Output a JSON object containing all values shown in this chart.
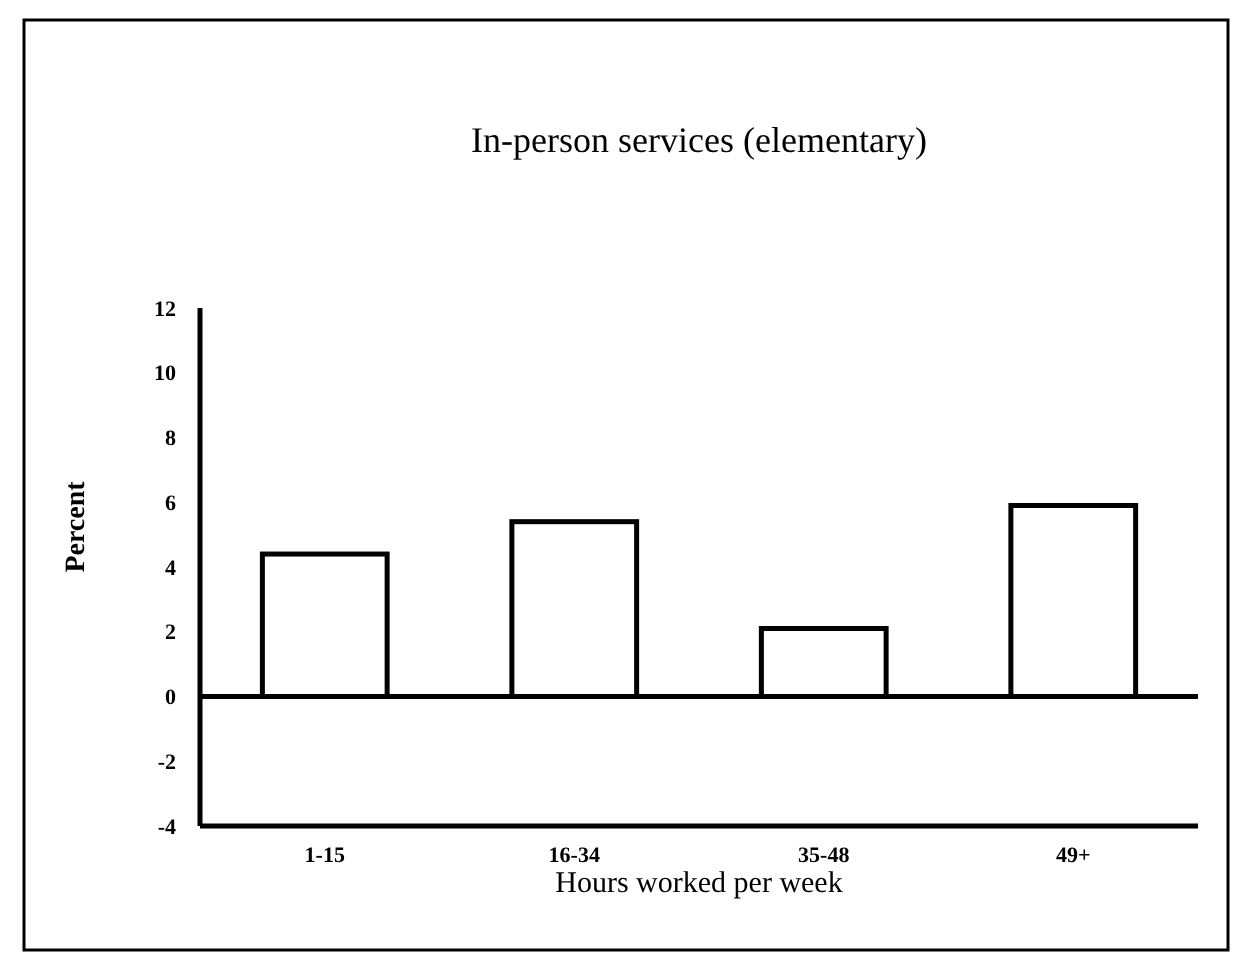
{
  "chart_data": {
    "type": "bar",
    "title": "In-person services (elementary)",
    "xlabel": "Hours worked per week",
    "ylabel": "Percent",
    "categories": [
      "1-15",
      "16-34",
      "35-48",
      "49+"
    ],
    "values": [
      4.4,
      5.4,
      2.1,
      5.9
    ],
    "color": "#ffffff",
    "ylim": [
      -4,
      12
    ],
    "yticks": [
      -4,
      -2,
      0,
      2,
      4,
      6,
      8,
      10,
      12
    ],
    "grid": false,
    "ref_lines": [
      {
        "axis": "y",
        "value": 0,
        "color": "#000000"
      }
    ]
  }
}
